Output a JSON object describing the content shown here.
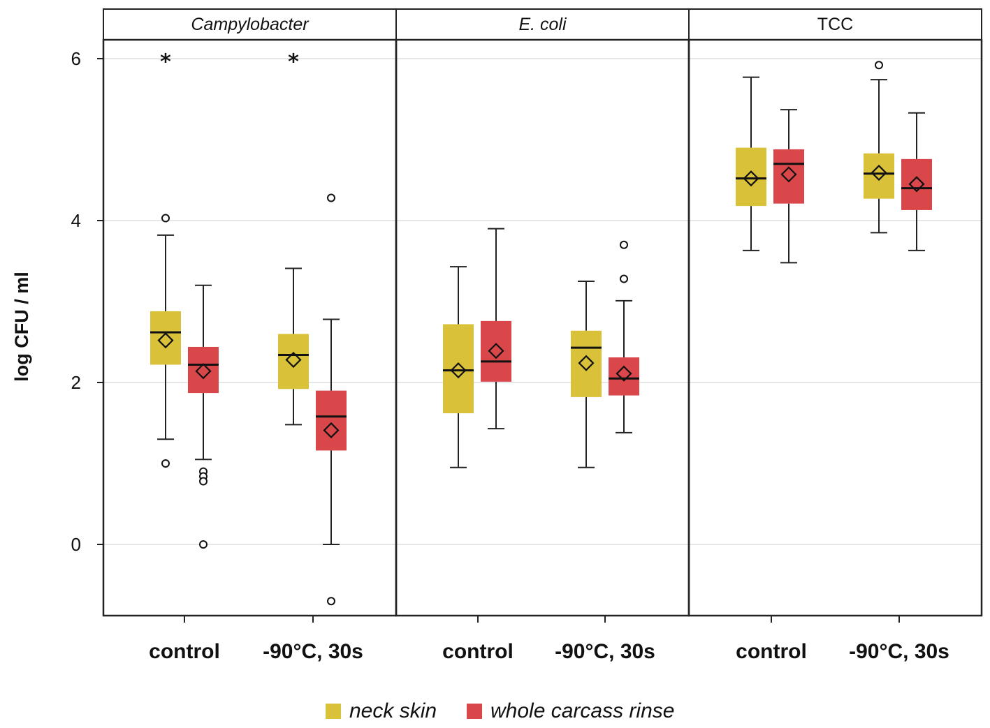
{
  "chart_data": {
    "type": "boxplot",
    "ylabel": "log CFU / ml",
    "ylim": [
      -0.85,
      6.3
    ],
    "yticks": [
      0,
      2,
      4,
      6
    ],
    "ytick_labels": [
      "0",
      "2",
      "4",
      "6"
    ],
    "panels": [
      {
        "title": "Campylobacter",
        "italic": true
      },
      {
        "title": "E. coli",
        "italic": true
      },
      {
        "title": "TCC",
        "italic": false
      }
    ],
    "categories": [
      "control",
      "-90°C, 30s"
    ],
    "legend": [
      {
        "label": "neck skin",
        "color": "#d9c13a"
      },
      {
        "label": "whole carcass rinse",
        "color": "#d9474a"
      }
    ],
    "boxes": [
      {
        "panel": 0,
        "category": 0,
        "series": 0,
        "q1": 2.22,
        "median": 2.62,
        "q3": 2.88,
        "whisker_low": 1.3,
        "whisker_high": 3.82,
        "mean": 2.52,
        "outliers": [
          4.03,
          1.0
        ],
        "extremes": [
          5.98
        ]
      },
      {
        "panel": 0,
        "category": 0,
        "series": 1,
        "q1": 1.87,
        "median": 2.22,
        "q3": 2.44,
        "whisker_low": 1.05,
        "whisker_high": 3.2,
        "mean": 2.14,
        "outliers": [
          0.9,
          0.84,
          0.78,
          0.0
        ],
        "extremes": []
      },
      {
        "panel": 0,
        "category": 1,
        "series": 0,
        "q1": 1.92,
        "median": 2.34,
        "q3": 2.6,
        "whisker_low": 1.48,
        "whisker_high": 3.41,
        "mean": 2.28,
        "outliers": [],
        "extremes": [
          5.98
        ]
      },
      {
        "panel": 0,
        "category": 1,
        "series": 1,
        "q1": 1.16,
        "median": 1.58,
        "q3": 1.9,
        "whisker_low": 0.0,
        "whisker_high": 2.78,
        "mean": 1.41,
        "outliers": [
          4.28,
          -0.7
        ],
        "extremes": []
      },
      {
        "panel": 1,
        "category": 0,
        "series": 0,
        "q1": 1.62,
        "median": 2.15,
        "q3": 2.72,
        "whisker_low": 0.95,
        "whisker_high": 3.43,
        "mean": 2.15,
        "outliers": [],
        "extremes": []
      },
      {
        "panel": 1,
        "category": 0,
        "series": 1,
        "q1": 2.01,
        "median": 2.26,
        "q3": 2.76,
        "whisker_low": 1.43,
        "whisker_high": 3.9,
        "mean": 2.39,
        "outliers": [],
        "extremes": []
      },
      {
        "panel": 1,
        "category": 1,
        "series": 0,
        "q1": 1.82,
        "median": 2.43,
        "q3": 2.64,
        "whisker_low": 0.95,
        "whisker_high": 3.25,
        "mean": 2.24,
        "outliers": [],
        "extremes": []
      },
      {
        "panel": 1,
        "category": 1,
        "series": 1,
        "q1": 1.84,
        "median": 2.05,
        "q3": 2.31,
        "whisker_low": 1.38,
        "whisker_high": 3.01,
        "mean": 2.11,
        "outliers": [
          3.7,
          3.28
        ],
        "extremes": []
      },
      {
        "panel": 2,
        "category": 0,
        "series": 0,
        "q1": 4.18,
        "median": 4.52,
        "q3": 4.9,
        "whisker_low": 3.63,
        "whisker_high": 5.77,
        "mean": 4.52,
        "outliers": [],
        "extremes": []
      },
      {
        "panel": 2,
        "category": 0,
        "series": 1,
        "q1": 4.21,
        "median": 4.7,
        "q3": 4.88,
        "whisker_low": 3.48,
        "whisker_high": 5.37,
        "mean": 4.57,
        "outliers": [],
        "extremes": []
      },
      {
        "panel": 2,
        "category": 1,
        "series": 0,
        "q1": 4.27,
        "median": 4.58,
        "q3": 4.83,
        "whisker_low": 3.85,
        "whisker_high": 5.74,
        "mean": 4.59,
        "outliers": [
          5.92
        ],
        "extremes": []
      },
      {
        "panel": 2,
        "category": 1,
        "series": 1,
        "q1": 4.13,
        "median": 4.4,
        "q3": 4.76,
        "whisker_low": 3.63,
        "whisker_high": 5.33,
        "mean": 4.45,
        "outliers": [],
        "extremes": []
      }
    ]
  }
}
